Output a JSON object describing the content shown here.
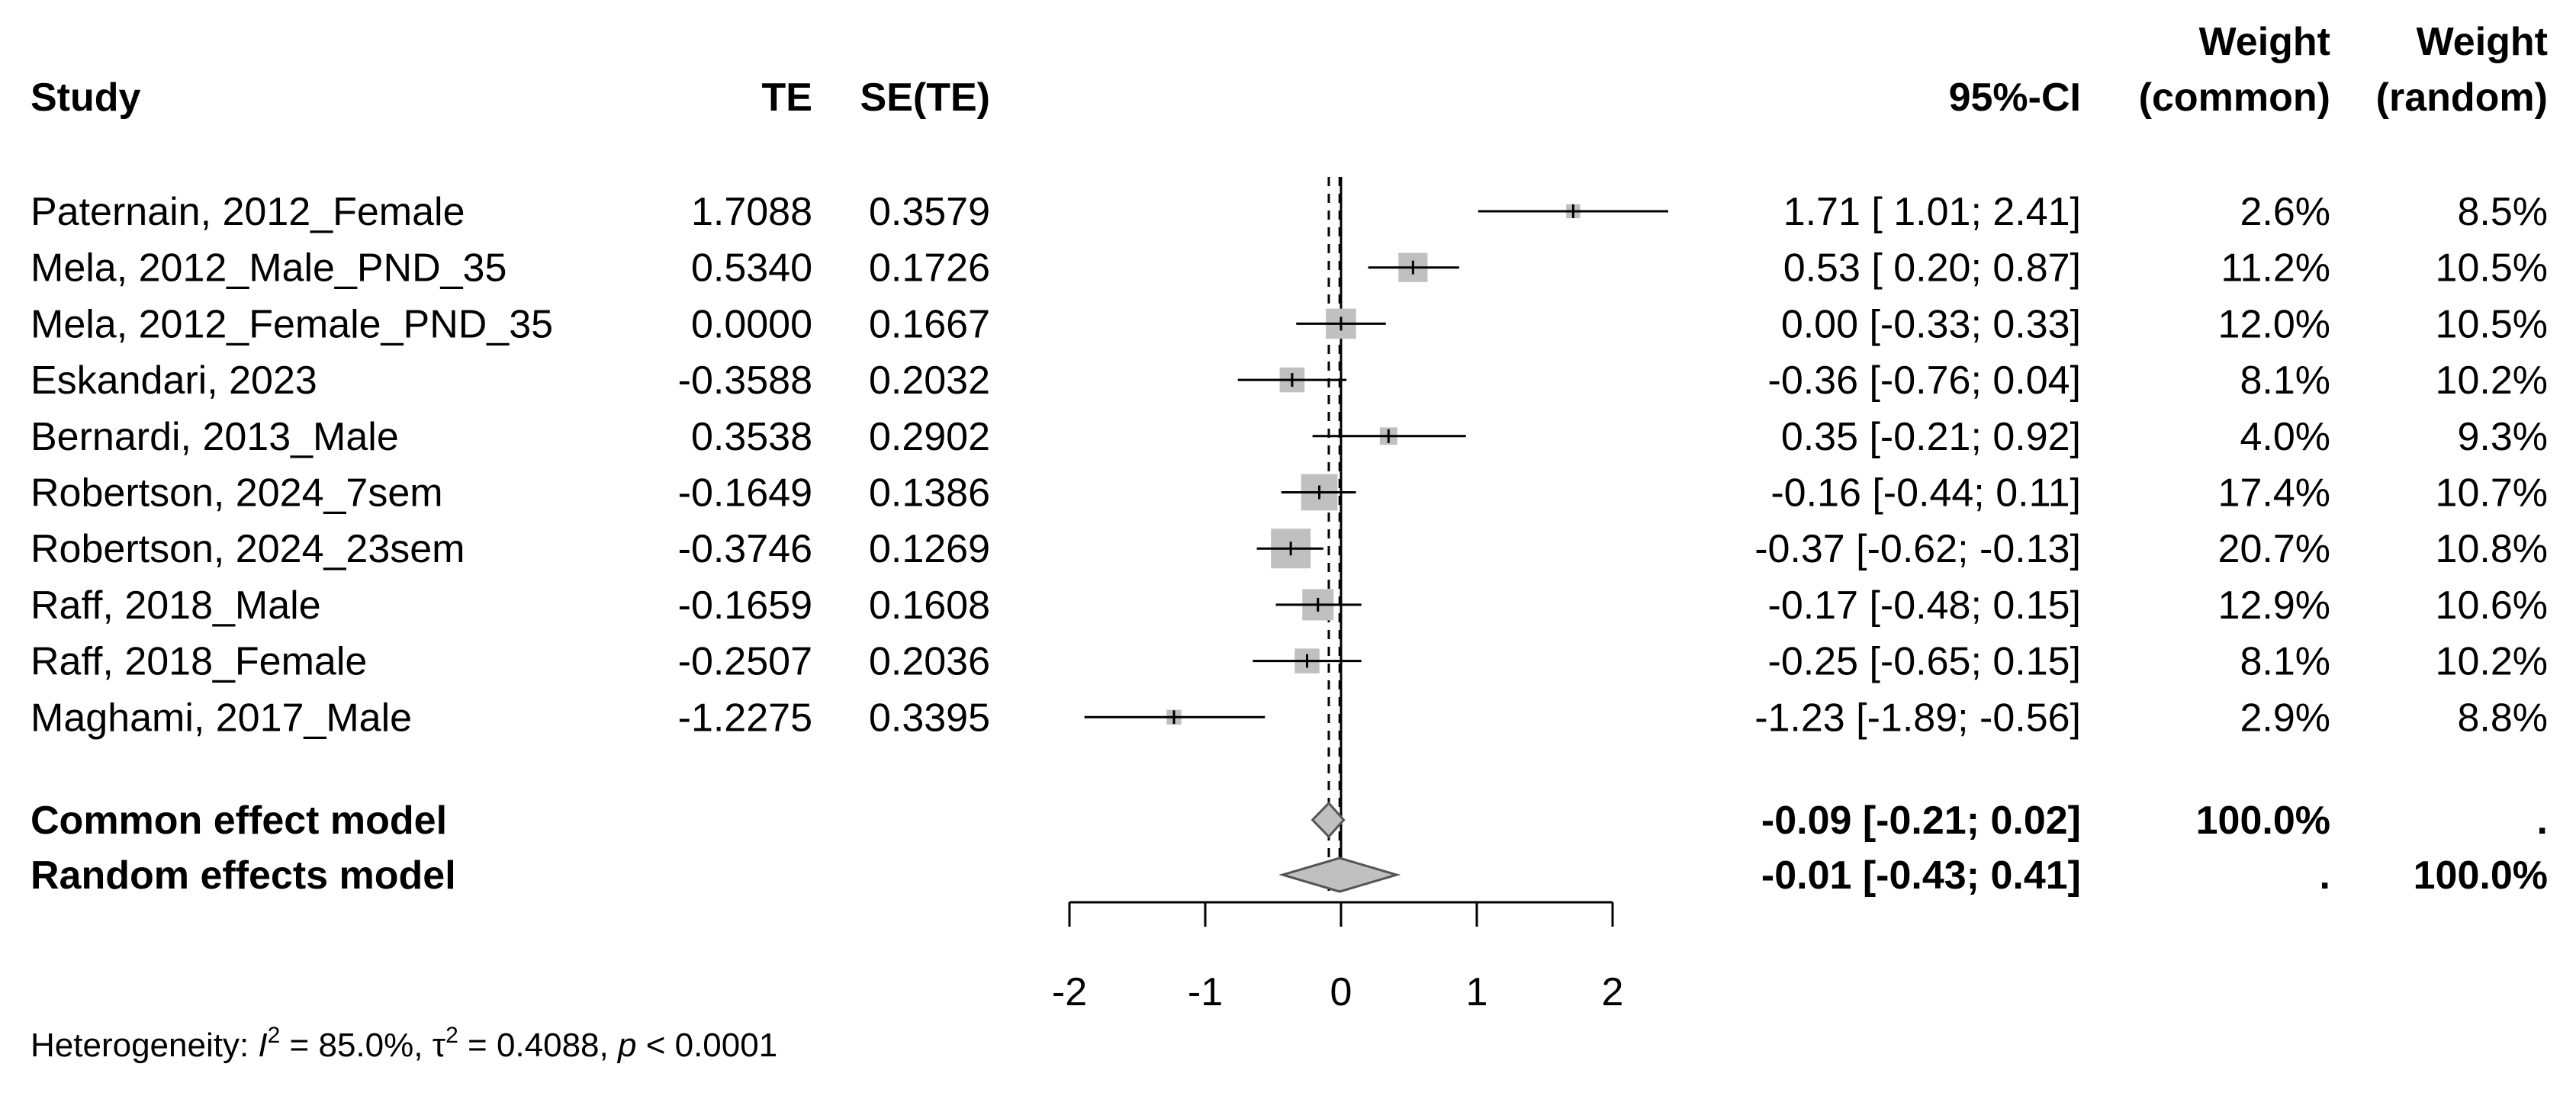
{
  "chart_data": {
    "type": "forest",
    "columns": {
      "study": "Study",
      "te": "TE",
      "se": "SE(TE)",
      "ci": "95%-CI",
      "weight_common": [
        "Weight",
        "(common)"
      ],
      "weight_random": [
        "Weight",
        "(random)"
      ]
    },
    "studies": [
      {
        "name": "Paternain, 2012_Female",
        "te": "1.7088",
        "se": "0.3579",
        "est": 1.71,
        "lower": 1.01,
        "upper": 2.41,
        "ci_text": "1.71  [ 1.01;  2.41]",
        "w_common": "2.6%",
        "w_random": "8.5%",
        "w": 2.6
      },
      {
        "name": "Mela, 2012_Male_PND_35",
        "te": "0.5340",
        "se": "0.1726",
        "est": 0.53,
        "lower": 0.2,
        "upper": 0.87,
        "ci_text": "0.53  [ 0.20;  0.87]",
        "w_common": "11.2%",
        "w_random": "10.5%",
        "w": 11.2
      },
      {
        "name": "Mela, 2012_Female_PND_35",
        "te": "0.0000",
        "se": "0.1667",
        "est": 0.0,
        "lower": -0.33,
        "upper": 0.33,
        "ci_text": "0.00  [-0.33;  0.33]",
        "w_common": "12.0%",
        "w_random": "10.5%",
        "w": 12.0
      },
      {
        "name": "Eskandari, 2023",
        "te": "-0.3588",
        "se": "0.2032",
        "est": -0.36,
        "lower": -0.76,
        "upper": 0.04,
        "ci_text": "-0.36  [-0.76;  0.04]",
        "w_common": "8.1%",
        "w_random": "10.2%",
        "w": 8.1
      },
      {
        "name": "Bernardi, 2013_Male",
        "te": "0.3538",
        "se": "0.2902",
        "est": 0.35,
        "lower": -0.21,
        "upper": 0.92,
        "ci_text": "0.35  [-0.21;  0.92]",
        "w_common": "4.0%",
        "w_random": "9.3%",
        "w": 4.0
      },
      {
        "name": "Robertson, 2024_7sem",
        "te": "-0.1649",
        "se": "0.1386",
        "est": -0.16,
        "lower": -0.44,
        "upper": 0.11,
        "ci_text": "-0.16  [-0.44;  0.11]",
        "w_common": "17.4%",
        "w_random": "10.7%",
        "w": 17.4
      },
      {
        "name": "Robertson, 2024_23sem",
        "te": "-0.3746",
        "se": "0.1269",
        "est": -0.37,
        "lower": -0.62,
        "upper": -0.13,
        "ci_text": "-0.37  [-0.62; -0.13]",
        "w_common": "20.7%",
        "w_random": "10.8%",
        "w": 20.7
      },
      {
        "name": "Raff, 2018_Male",
        "te": "-0.1659",
        "se": "0.1608",
        "est": -0.17,
        "lower": -0.48,
        "upper": 0.15,
        "ci_text": "-0.17  [-0.48;  0.15]",
        "w_common": "12.9%",
        "w_random": "10.6%",
        "w": 12.9
      },
      {
        "name": "Raff, 2018_Female",
        "te": "-0.2507",
        "se": "0.2036",
        "est": -0.25,
        "lower": -0.65,
        "upper": 0.15,
        "ci_text": "-0.25  [-0.65;  0.15]",
        "w_common": "8.1%",
        "w_random": "10.2%",
        "w": 8.1
      },
      {
        "name": "Maghami, 2017_Male",
        "te": "-1.2275",
        "se": "0.3395",
        "est": -1.23,
        "lower": -1.89,
        "upper": -0.56,
        "ci_text": "-1.23  [-1.89; -0.56]",
        "w_common": "2.9%",
        "w_random": "8.8%",
        "w": 2.9
      }
    ],
    "models": [
      {
        "name": "Common effect model",
        "est": -0.09,
        "lower": -0.21,
        "upper": 0.02,
        "ci_text": "-0.09  [-0.21;  0.02]",
        "w_common": "100.0%",
        "w_random": "."
      },
      {
        "name": "Random effects model",
        "est": -0.01,
        "lower": -0.43,
        "upper": 0.41,
        "ci_text": "-0.01  [-0.43;  0.41]",
        "w_common": ".",
        "w_random": "100.0%"
      }
    ],
    "x_ticks": [
      -2,
      -1,
      0,
      1,
      2
    ],
    "xlim": [
      -2,
      2
    ],
    "null_line": 0,
    "heterogeneity": {
      "prefix": "Heterogeneity: ",
      "i2": "85.0%",
      "tau2": "0.4088",
      "p": "< 0.0001"
    },
    "colors": {
      "square": "#c0c0c0",
      "diamond": "#c0c0c0",
      "line": "#000000"
    }
  }
}
